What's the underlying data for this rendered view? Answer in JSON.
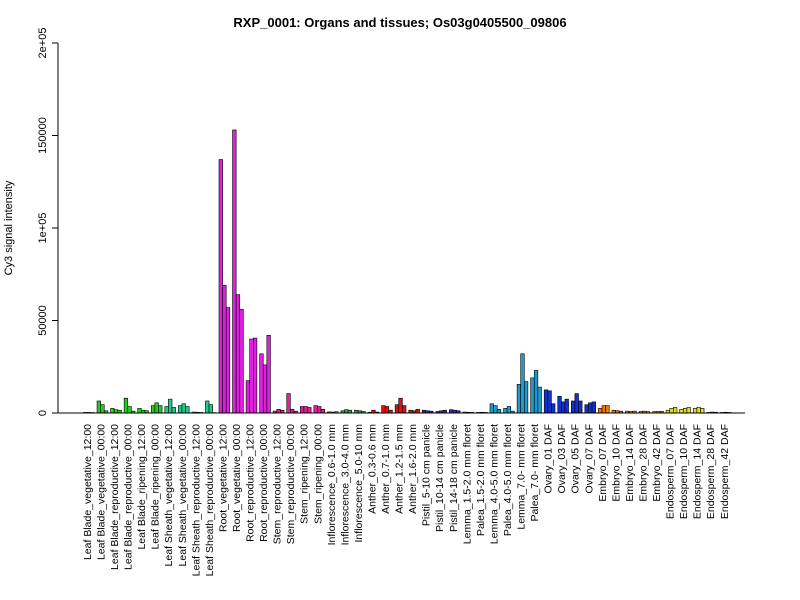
{
  "chart_data": {
    "type": "bar",
    "title": "RXP_0001: Organs and tissues; Os03g0405500_09806",
    "xlabel": "",
    "ylabel": "Cy3 signal intensity",
    "ylim": [
      0,
      200000
    ],
    "yticks": [
      {
        "value": 0,
        "label": "0"
      },
      {
        "value": 50000,
        "label": "50000"
      },
      {
        "value": 100000,
        "label": "1e+05"
      },
      {
        "value": 150000,
        "label": "150000"
      },
      {
        "value": 200000,
        "label": "2e+05"
      }
    ],
    "grid": false,
    "legend": "none",
    "groups": [
      {
        "label": "Leaf Blade_vegetative_12:00",
        "color": "#22cc22",
        "values": [
          300,
          300,
          250
        ]
      },
      {
        "label": "Leaf Blade_vegetative_00:00",
        "color": "#22cc22",
        "values": [
          6500,
          4500,
          1200
        ]
      },
      {
        "label": "Leaf Blade_reproductive_12:00",
        "color": "#22cc22",
        "values": [
          2500,
          1800,
          1500
        ]
      },
      {
        "label": "Leaf Blade_reproductive_00:00",
        "color": "#22cc22",
        "values": [
          8000,
          3500,
          1000
        ]
      },
      {
        "label": "Leaf Blade_ripening_12:00",
        "color": "#22cc22",
        "values": [
          2500,
          1500,
          1200
        ]
      },
      {
        "label": "Leaf Blade_ripening_00:00",
        "color": "#22cc22",
        "values": [
          4000,
          5500,
          4000
        ]
      },
      {
        "label": "Leaf Sheath_vegetative_12:00",
        "color": "#22cc88",
        "values": [
          3500,
          7500,
          3000
        ]
      },
      {
        "label": "Leaf Sheath_vegetative_00:00",
        "color": "#22cc88",
        "values": [
          4000,
          5000,
          3500
        ]
      },
      {
        "label": "Leaf Sheath_reproductive_12:00",
        "color": "#22cc88",
        "values": [
          500,
          400,
          300
        ]
      },
      {
        "label": "Leaf Sheath_reproductive_00:00",
        "color": "#22cc88",
        "values": [
          6500,
          4500,
          200
        ]
      },
      {
        "label": "Root_vegetative_12:00",
        "color": "#dd22dd",
        "values": [
          137000,
          69000,
          57000
        ]
      },
      {
        "label": "Root_vegetative_00:00",
        "color": "#dd22dd",
        "values": [
          153000,
          64000,
          56000
        ]
      },
      {
        "label": "Root_reproductive_12:00",
        "color": "#dd22dd",
        "values": [
          17500,
          40000,
          40500
        ]
      },
      {
        "label": "Root_reproductive_00:00",
        "color": "#dd22dd",
        "values": [
          32000,
          26000,
          42000
        ]
      },
      {
        "label": "Stem_reproductive_12:00",
        "color": "#dd2299",
        "values": [
          1000,
          2000,
          1500
        ]
      },
      {
        "label": "Stem_reproductive_00:00",
        "color": "#dd2299",
        "values": [
          10500,
          2000,
          1000
        ]
      },
      {
        "label": "Stem_ripening_12:00",
        "color": "#dd2299",
        "values": [
          3500,
          3500,
          3000
        ]
      },
      {
        "label": "Stem_ripening_00:00",
        "color": "#dd2299",
        "values": [
          4000,
          3500,
          2000
        ]
      },
      {
        "label": "Inflorescence_0.6-1.0 mm",
        "color": "#22aa55",
        "values": [
          600,
          500,
          700
        ]
      },
      {
        "label": "Inflorescence_3.0-4.0 mm",
        "color": "#22aa55",
        "values": [
          1200,
          1800,
          1500
        ]
      },
      {
        "label": "Inflorescence_5.0-10 mm",
        "color": "#22aa55",
        "values": [
          1500,
          1200,
          800
        ]
      },
      {
        "label": "Anther_0.3-0.6 mm",
        "color": "#dd1111",
        "values": [
          400,
          1500,
          500
        ]
      },
      {
        "label": "Anther_0.7-1.0 mm",
        "color": "#dd1111",
        "values": [
          4000,
          3500,
          1500
        ]
      },
      {
        "label": "Anther_1.2-1.5 mm",
        "color": "#dd1111",
        "values": [
          4500,
          8000,
          4000
        ]
      },
      {
        "label": "Anther_1.6-2.0 mm",
        "color": "#dd1111",
        "values": [
          1500,
          1200,
          2000
        ]
      },
      {
        "label": "Pistil_5-10 cm panicle",
        "color": "#4422aa",
        "values": [
          1500,
          1200,
          1000
        ]
      },
      {
        "label": "Pistil_10-14 cm panicle",
        "color": "#4422aa",
        "values": [
          800,
          1200,
          1500
        ]
      },
      {
        "label": "Pistil_14-18 cm panicle",
        "color": "#4422aa",
        "values": [
          1800,
          1500,
          1200
        ]
      },
      {
        "label": "Lemma_1.5-2.0 mm floret",
        "color": "#2299cc",
        "values": [
          500,
          400,
          300
        ]
      },
      {
        "label": "Palea_1.5-2.0 mm floret",
        "color": "#2299cc",
        "values": [
          300,
          400,
          300
        ]
      },
      {
        "label": "Lemma_4.0-5.0 mm floret",
        "color": "#2299cc",
        "values": [
          5000,
          4000,
          2000
        ]
      },
      {
        "label": "Palea_4.0-5.0 mm floret",
        "color": "#2299cc",
        "values": [
          2500,
          3500,
          1000
        ]
      },
      {
        "label": "Lemma_7.0- mm floret",
        "color": "#2299cc",
        "values": [
          15500,
          32000,
          17000
        ]
      },
      {
        "label": "Palea_7.0- mm floret",
        "color": "#2299cc",
        "values": [
          19000,
          23000,
          14000
        ]
      },
      {
        "label": "Ovary_01 DAF",
        "color": "#1133cc",
        "values": [
          12500,
          12000,
          5000
        ]
      },
      {
        "label": "Ovary_03 DAF",
        "color": "#1133cc",
        "values": [
          9000,
          6000,
          7500
        ]
      },
      {
        "label": "Ovary_05 DAF",
        "color": "#1133cc",
        "values": [
          6500,
          10500,
          6500
        ]
      },
      {
        "label": "Ovary_07 DAF",
        "color": "#1133cc",
        "values": [
          4500,
          5500,
          6000
        ]
      },
      {
        "label": "Embryo_07 DAF",
        "color": "#ee7711",
        "values": [
          2500,
          4000,
          4000
        ]
      },
      {
        "label": "Embryo_10 DAF",
        "color": "#ee7711",
        "values": [
          1500,
          1200,
          1000
        ]
      },
      {
        "label": "Embryo_14 DAF",
        "color": "#ee7711",
        "values": [
          1000,
          800,
          1000
        ]
      },
      {
        "label": "Embryo_28 DAF",
        "color": "#ee7711",
        "values": [
          800,
          1000,
          700
        ]
      },
      {
        "label": "Embryo_42 DAF",
        "color": "#ee7711",
        "values": [
          700,
          800,
          900
        ]
      },
      {
        "label": "Endosperm_07 DAF",
        "color": "#dddd22",
        "values": [
          1500,
          2500,
          3000
        ]
      },
      {
        "label": "Endosperm_10 DAF",
        "color": "#dddd22",
        "values": [
          2000,
          2500,
          3000
        ]
      },
      {
        "label": "Endosperm_14 DAF",
        "color": "#dddd22",
        "values": [
          2500,
          3000,
          2500
        ]
      },
      {
        "label": "Endosperm_28 DAF",
        "color": "#dddd22",
        "values": [
          300,
          500,
          400
        ]
      },
      {
        "label": "Endosperm_42 DAF",
        "color": "#dddd22",
        "values": [
          300,
          400,
          300
        ]
      }
    ]
  }
}
